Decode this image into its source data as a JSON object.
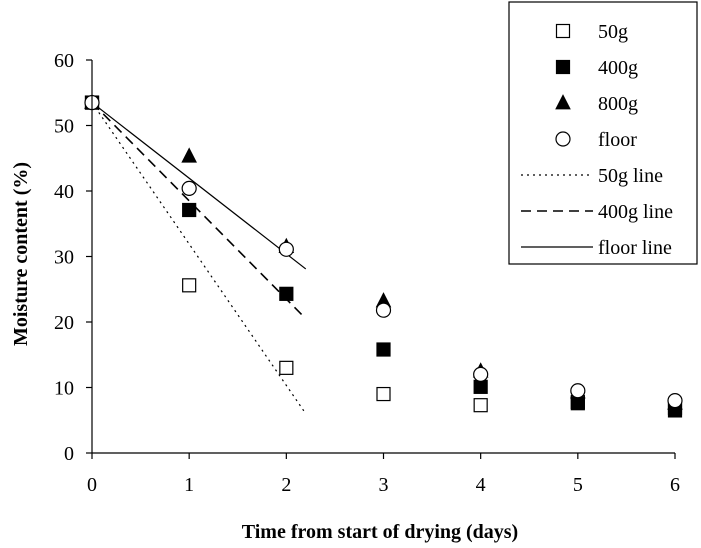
{
  "chart_data": {
    "type": "scatter",
    "title": "",
    "xlabel": "Time from start of drying (days)",
    "ylabel": "Moisture content (%)",
    "xlim": [
      0,
      6
    ],
    "ylim": [
      0,
      60
    ],
    "xticks": [
      "0",
      "1",
      "2",
      "3",
      "4",
      "5",
      "6"
    ],
    "yticks": [
      "0",
      "10",
      "20",
      "30",
      "40",
      "50",
      "60"
    ],
    "grid": false,
    "legend_position": "top-right",
    "series": [
      {
        "name": "50g",
        "marker": "open-square",
        "x": [
          0,
          1,
          2,
          3,
          4,
          5,
          6
        ],
        "y": [
          53.5,
          25.6,
          13.0,
          9.0,
          7.3,
          7.8,
          6.9
        ]
      },
      {
        "name": "400g",
        "marker": "filled-square",
        "x": [
          0,
          1,
          2,
          3,
          4,
          5,
          6
        ],
        "y": [
          53.5,
          37.1,
          24.3,
          15.8,
          10.1,
          7.6,
          6.5
        ]
      },
      {
        "name": "800g",
        "marker": "filled-triangle",
        "x": [
          0,
          1,
          2,
          3,
          4,
          5,
          6
        ],
        "y": [
          53.5,
          45.3,
          31.5,
          23.2,
          12.5,
          9.3,
          7.6
        ]
      },
      {
        "name": "floor",
        "marker": "open-circle",
        "x": [
          0,
          1,
          2,
          3,
          4,
          5,
          6
        ],
        "y": [
          53.5,
          40.4,
          31.1,
          21.8,
          12.0,
          9.5,
          8.0
        ]
      }
    ],
    "lines": [
      {
        "name": "50g line",
        "style": "dotted",
        "x": [
          0,
          2.2
        ],
        "y": [
          53.5,
          6.0
        ]
      },
      {
        "name": "400g line",
        "style": "dashed",
        "x": [
          0,
          2.2
        ],
        "y": [
          53.5,
          20.5
        ]
      },
      {
        "name": "floor line",
        "style": "solid",
        "x": [
          0,
          2.2
        ],
        "y": [
          53.5,
          28.1
        ]
      }
    ]
  }
}
